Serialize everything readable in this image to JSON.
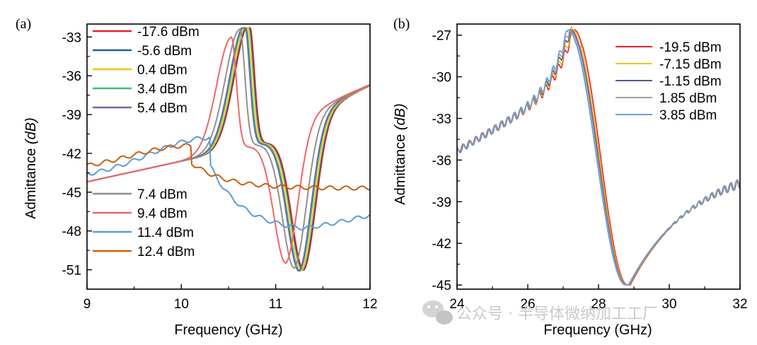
{
  "watermark": "公众号 · 半导体微纳加工工厂",
  "chart_data": [
    {
      "type": "line",
      "panel_label": "(a)",
      "xlabel": "Frequency (GHz)",
      "ylabel_main": "Admittance ",
      "ylabel_unit": "(dB)",
      "xlim": [
        9,
        12
      ],
      "ylim": [
        -52.5,
        -32.0
      ],
      "xticks": [
        9,
        10,
        11,
        12
      ],
      "yticks": [
        -33,
        -36,
        -39,
        -42,
        -45,
        -48,
        -51
      ],
      "legend_placement": "left-inside",
      "series": [
        {
          "name": "-17.6 dBm",
          "color": "#e8202a",
          "f0": 10.72,
          "depth": 1.0,
          "lin": 1.0
        },
        {
          "name": "-5.6 dBm",
          "color": "#20609a",
          "f0": 10.71,
          "depth": 1.0,
          "lin": 1.0
        },
        {
          "name": "0.4 dBm",
          "color": "#f2c21a",
          "f0": 10.7,
          "depth": 1.0,
          "lin": 1.0
        },
        {
          "name": "3.4 dBm",
          "color": "#3cbf6a",
          "f0": 10.68,
          "depth": 1.0,
          "lin": 1.0
        },
        {
          "name": "5.4 dBm",
          "color": "#7068a8",
          "f0": 10.67,
          "depth": 1.0,
          "lin": 1.0
        },
        {
          "name": "7.4 dBm",
          "color": "#909090",
          "f0": 10.62,
          "depth": 0.97,
          "lin": 1.0
        },
        {
          "name": "9.4 dBm",
          "color": "#f06468",
          "f0": 10.53,
          "depth": 0.92,
          "lin": 1.0
        },
        {
          "name": "11.4 dBm",
          "color": "#5b9bd5",
          "f0": 10.3,
          "depth": 0.35,
          "lin": 1.0
        },
        {
          "name": "12.4 dBm",
          "color": "#c8600c",
          "f0": 10.1,
          "depth": 0.15,
          "lin": 1.0
        }
      ]
    },
    {
      "type": "line",
      "panel_label": "(b)",
      "xlabel": "Frequency (GHz)",
      "ylabel_main": "Admittance ",
      "ylabel_unit": "(dB)",
      "xlim": [
        24,
        32
      ],
      "ylim": [
        -45.3,
        -26.2
      ],
      "xticks": [
        24,
        26,
        28,
        30,
        32
      ],
      "yticks": [
        -27,
        -30,
        -33,
        -36,
        -39,
        -42,
        -45
      ],
      "legend_placement": "top-right",
      "series": [
        {
          "name": "-19.5 dBm",
          "color": "#e8202a",
          "shift": 0.0
        },
        {
          "name": "-7.15 dBm",
          "color": "#f2c21a",
          "shift": -0.05
        },
        {
          "name": "-1.15 dBm",
          "color": "#5a5490",
          "shift": -0.1
        },
        {
          "name": "1.85 dBm",
          "color": "#a0a0a0",
          "shift": -0.14
        },
        {
          "name": "3.85 dBm",
          "color": "#6a9fd8",
          "shift": -0.18
        }
      ]
    }
  ]
}
